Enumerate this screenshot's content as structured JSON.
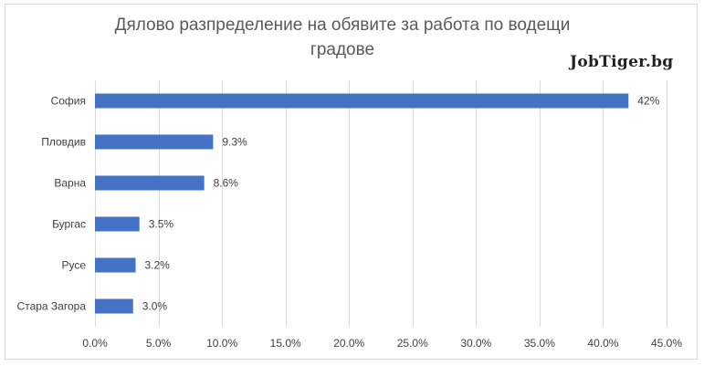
{
  "chart_data": {
    "type": "bar",
    "orientation": "horizontal",
    "title_lines": [
      "Дялово разпределение на обявите за работа по водещи",
      "градове"
    ],
    "categories": [
      "София",
      "Пловдив",
      "Варна",
      "Бургас",
      "Русе",
      "Стара Загора"
    ],
    "values": [
      0.42,
      0.093,
      0.086,
      0.035,
      0.032,
      0.03
    ],
    "value_labels": [
      "42%",
      "9.3%",
      "8.6%",
      "3.5%",
      "3.2%",
      "3.0%"
    ],
    "xlim": [
      0,
      0.45
    ],
    "xticks": [
      0,
      0.05,
      0.1,
      0.15,
      0.2,
      0.25,
      0.3,
      0.35,
      0.4,
      0.45
    ],
    "xtick_labels": [
      "0.0%",
      "5.0%",
      "10.0%",
      "15.0%",
      "20.0%",
      "25.0%",
      "30.0%",
      "35.0%",
      "40.0%",
      "45.0%"
    ],
    "grid": "vertical",
    "bar_color": "#4472c4",
    "grid_color": "#d9d9d9"
  },
  "watermark": {
    "text": "JobTiger.bg"
  }
}
